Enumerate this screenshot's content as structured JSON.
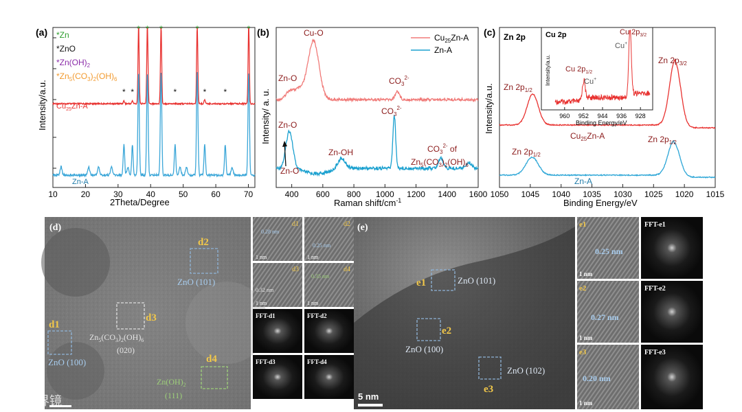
{
  "chart_data": [
    {
      "panel": "(a)",
      "type": "line",
      "xlabel": "2Theta/Degree",
      "ylabel": "Intensity/a.u.",
      "xlim": [
        10,
        72
      ],
      "xticks": [
        10,
        20,
        30,
        40,
        50,
        60,
        70
      ],
      "legend": [
        {
          "label": "*Zn",
          "color": "#2e9e2e"
        },
        {
          "label": "*ZnO",
          "color": "#111111"
        },
        {
          "label": "*Zn(OH)2",
          "color": "#8a2aa8"
        },
        {
          "label": "*Zn5(CO3)2(OH)6",
          "color": "#f29a2e"
        }
      ],
      "series": [
        {
          "name": "Cu25Zn-A",
          "color": "#e8312f"
        },
        {
          "name": "Zn-A",
          "color": "#3aa6d8"
        }
      ],
      "cu_peaks": [
        36.3,
        39.0,
        43.2,
        54.3,
        70.1
      ],
      "zn_a_peaks": [
        31.8,
        34.4,
        36.3,
        39.0,
        43.2,
        47.5,
        54.3,
        56.6,
        62.9,
        70.1
      ],
      "star_marks": {
        "zn": [
          36.3,
          39.0,
          43.2,
          54.3,
          70.1
        ],
        "zno": [
          31.8,
          34.4,
          47.5,
          56.6,
          62.9
        ]
      }
    },
    {
      "panel": "(b)",
      "type": "line",
      "xlabel": "Raman shift/cm⁻¹",
      "ylabel": "Intensity/ a. u.",
      "xlim": [
        300,
        1600
      ],
      "xticks": [
        400,
        600,
        800,
        1000,
        1200,
        1400,
        1600
      ],
      "series": [
        {
          "name": "Cu25Zn-A",
          "color": "#e8312f"
        },
        {
          "name": "Zn-A",
          "color": "#3aa6d8"
        }
      ],
      "annotations": [
        "Cu-O",
        "Zn-O",
        "CO3 2-",
        "Zn-O",
        "Zn-OH",
        "CO3 2-",
        "Zn-O",
        "CO3 2- of Zn5(CO3)2(OH)6"
      ]
    },
    {
      "panel": "(c)",
      "type": "line",
      "xlabel": "Binding Energy/eV",
      "ylabel": "Intensity/a.u.",
      "xlim": [
        1050,
        1015
      ],
      "xticks": [
        1050,
        1045,
        1040,
        1035,
        1030,
        1025,
        1020,
        1015
      ],
      "series": [
        {
          "name": "Cu25Zn-A",
          "color": "#e8312f",
          "peaks": [
            1044.6,
            1021.5
          ]
        },
        {
          "name": "Zn-A",
          "color": "#3aa6d8",
          "peaks": [
            1044.7,
            1021.7
          ]
        }
      ],
      "inset": {
        "title": "Cu 2p",
        "xlabel": "Binding Energy/eV",
        "ylabel": "Intensity/a.u.",
        "xticks": [
          960,
          952,
          944,
          936,
          928
        ],
        "peaks": [
          952.0,
          932.4
        ]
      }
    }
  ],
  "texts": {
    "a_label": "(a)",
    "b_label": "(b)",
    "c_label": "(c)",
    "a_xlabel": "2Theta/Degree",
    "a_ylabel": "Intensity/a.u.",
    "a_leg1": "*Zn",
    "a_leg2": "*ZnO",
    "a_leg3": "*Zn(OH)",
    "a_leg3_sub": "2",
    "a_leg4": "*Zn",
    "a_leg4_s1": "5",
    "a_leg4_m": "(CO",
    "a_leg4_s2": "3",
    "a_leg4_m2": ")",
    "a_leg4_s3": "2",
    "a_leg4_m3": "(OH)",
    "a_leg4_s4": "6",
    "a_s1": "Cu",
    "a_s1_sub": "25",
    "a_s1_b": "Zn-A",
    "a_s2": "Zn-A",
    "b_xlabel": "Raman shift/cm",
    "b_xlabel_sup": "-1",
    "b_ylabel": "Intensity/ a. u.",
    "b_leg1": "Cu",
    "b_leg1_sub": "25",
    "b_leg1_b": "Zn-A",
    "b_leg2": "Zn-A",
    "b_cuo": "Cu-O",
    "b_zno1": "Zn-O",
    "b_co3_1": "CO",
    "b_zno2": "Zn-O",
    "b_znoh": "Zn-OH",
    "b_co3_2": "CO",
    "b_zno3": "Zn-O",
    "b_co3_3": "CO",
    "b_co3_3_of": " of",
    "b_zn5": "Zn",
    "b_zn5_s1": "5",
    "b_zn5_m": "(CO",
    "b_zn5_s2": "3",
    "b_zn5_m2": ")",
    "b_zn5_s3": "2",
    "b_zn5_m3": "(OH)",
    "b_zn5_s4": "6",
    "c_xlabel": "Binding Energy/eV",
    "c_ylabel": "Intensity/a.u.",
    "c_zn2p": "Zn 2p",
    "c_zn2p12": "Zn 2p",
    "c_zn2p32": "Zn 2p",
    "c_cu25": "Cu",
    "c_cu25_sub": "25",
    "c_cu25_b": "Zn-A",
    "c_zn2p12b": "Zn 2p",
    "c_zn2p12c": "Zn 2p",
    "c_zna": "Zn-A",
    "sub12": "1/2",
    "sub32": "3/2",
    "in_title": "Cu 2p",
    "in_cu2p32": "Cu 2p",
    "in_cuplus1": "Cu",
    "in_cu2p12": "Cu 2p",
    "in_cuplus2": "Cu",
    "in_xlabel": "Binding Energy/eV",
    "in_ylabel": "Intensity/a.u.",
    "d_label": "(d)",
    "d1": "d1",
    "d2": "d2",
    "d3": "d3",
    "d4": "d4",
    "zno101": "ZnO (101)",
    "zno100": "ZnO (100)",
    "zn5_label": "Zn",
    "zn5_020": "(020)",
    "znoh_label": "Zn(OH)",
    "znoh_111": "(111)",
    "sd1": "d1",
    "sd2": "d2",
    "sd3": "d3",
    "sd4": "d4",
    "sd1_val": "0.28 nm",
    "sd2_val": "0.25 nm",
    "sd3_val": "0.32 nm",
    "sd4_val": "0.35 nm",
    "fft_d1": "FFT-d1",
    "fft_d2": "FFT-d2",
    "fft_d3": "FFT-d3",
    "fft_d4": "FFT-d4",
    "e_label": "(e)",
    "e1": "e1",
    "e2": "e2",
    "e3": "e3",
    "e_zno101": "ZnO (101)",
    "e_zno100": "ZnO (100)",
    "e_zno102": "ZnO (102)",
    "scale_5nm": "5 nm",
    "se1": "e1",
    "se2": "e2",
    "se3": "e3",
    "se1_val": "0.25 nm",
    "se2_val": "0.27 nm",
    "se3_val": "0.20 nm",
    "fft_e1": "FFT-e1",
    "fft_e2": "FFT-e2",
    "fft_e3": "FFT-e3",
    "scale_1nm": "1 nm",
    "watermark": "大视界镜"
  }
}
